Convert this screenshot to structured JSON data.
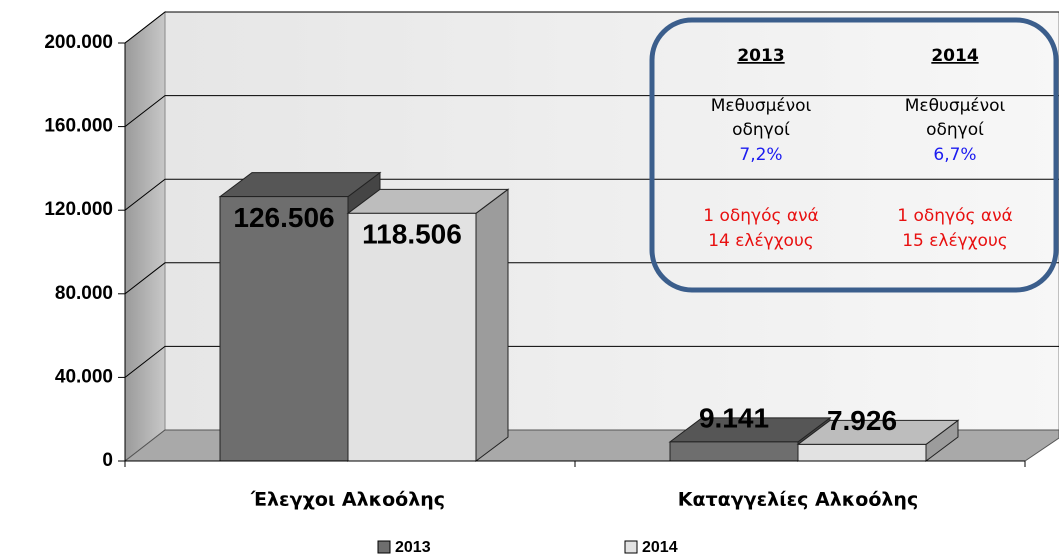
{
  "chart_data": {
    "type": "bar3d",
    "categories": [
      "Έλεγχοι Αλκοόλης",
      "Καταγγελίες Αλκοόλης"
    ],
    "series": [
      {
        "name": "2013",
        "color": "#6e6e6e",
        "values": [
          126506,
          9141
        ],
        "value_labels": [
          "126.506",
          "9.141"
        ]
      },
      {
        "name": "2014",
        "color": "#e2e2e2",
        "values": [
          118506,
          7926
        ],
        "value_labels": [
          "118.506",
          "7.926"
        ]
      }
    ],
    "ylim": [
      0,
      200000
    ],
    "yticks": [
      {
        "value": 0,
        "label": "0"
      },
      {
        "value": 40000,
        "label": "40.000"
      },
      {
        "value": 80000,
        "label": "80.000"
      },
      {
        "value": 120000,
        "label": "120.000"
      },
      {
        "value": 160000,
        "label": "160.000"
      },
      {
        "value": 200000,
        "label": "200.000"
      }
    ],
    "grid": true,
    "legend": "bottom",
    "annotation": {
      "columns": [
        {
          "header": "2013",
          "lines": [
            "Μεθυσμένοι",
            "οδηγοί"
          ],
          "rate": "7,2%",
          "ratio_lines": [
            "1 οδηγός ανά",
            "14 ελέγχους"
          ]
        },
        {
          "header": "2014",
          "lines": [
            "Μεθυσμένοι",
            "οδηγοί"
          ],
          "rate": "6,7%",
          "ratio_lines": [
            "1 οδηγός ανά",
            "15 ελέγχους"
          ]
        }
      ]
    }
  }
}
